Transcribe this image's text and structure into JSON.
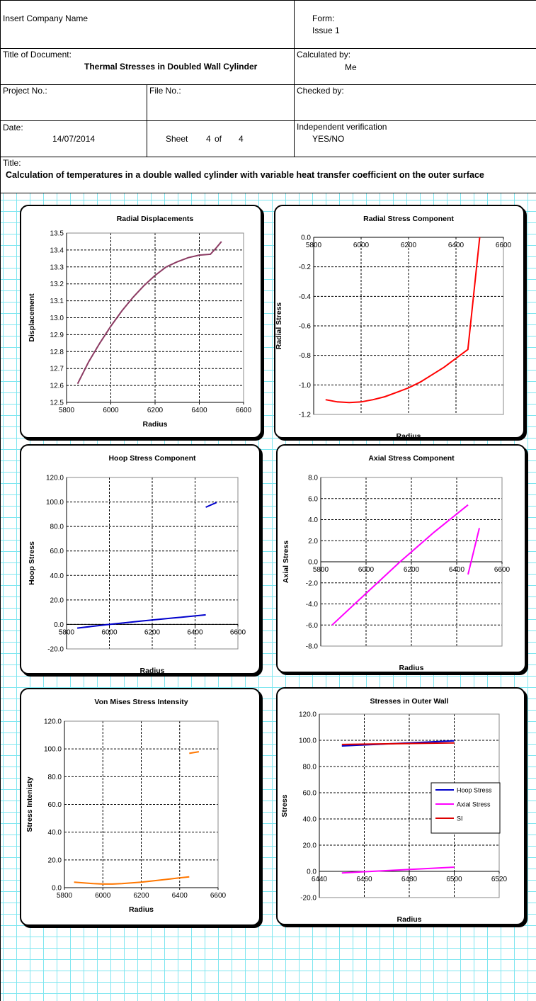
{
  "header": {
    "company": "Insert Company Name",
    "form_label": "Form:",
    "issue": "Issue 1",
    "title_label": "Title of Document:",
    "document_title": "Thermal Stresses in Doubled Wall Cylinder",
    "calculated_by_label": "Calculated by:",
    "calculated_by": "Me",
    "project_no_label": "Project No.:",
    "file_no_label": "File No.:",
    "checked_by_label": "Checked by:",
    "date_label": "Date:",
    "date": "14/07/2014",
    "sheet_label": "Sheet",
    "sheet_number": "4",
    "of_label": "of",
    "sheet_total": "4",
    "verification_label": "Independent verification",
    "verification_value": "YES/NO",
    "title2_label": "Title:",
    "calculation_title": "Calculation of temperatures in a double walled cylinder with variable heat transfer coefficient on the outer surface"
  },
  "chart_data": [
    {
      "type": "line",
      "title": "Radial Displacements",
      "xlabel": "Radius",
      "ylabel": "Displacement",
      "xlim": [
        5800,
        6600
      ],
      "ylim": [
        12.5,
        13.5
      ],
      "xticks": [
        "5800",
        "6000",
        "6200",
        "6400",
        "6600"
      ],
      "yticks": [
        "13.5",
        "13.4",
        "13.3",
        "13.2",
        "13.1",
        "13.0",
        "12.9",
        "12.8",
        "12.7",
        "12.6",
        "12.5"
      ],
      "series": [
        {
          "color": "#8B3A62",
          "x": [
            5850,
            5900,
            5950,
            6000,
            6050,
            6100,
            6150,
            6200,
            6250,
            6300,
            6350,
            6400,
            6450,
            6475,
            6500
          ],
          "y": [
            12.61,
            12.74,
            12.85,
            12.95,
            13.04,
            13.12,
            13.19,
            13.25,
            13.3,
            13.33,
            13.355,
            13.37,
            13.375,
            13.41,
            13.45
          ]
        }
      ]
    },
    {
      "type": "line",
      "title": "Radial  Stress Component",
      "xlabel": "Radius",
      "ylabel": "Radial Stress",
      "xlim": [
        5800,
        6600
      ],
      "ylim": [
        -1.2,
        0.0
      ],
      "xticks": [
        "5800",
        "6000",
        "6200",
        "6400",
        "6600"
      ],
      "yticks": [
        "0.0",
        "-0.2",
        "-0.4",
        "-0.6",
        "-0.8",
        "-1.0",
        "-1.2"
      ],
      "series": [
        {
          "color": "#ff0000",
          "x": [
            5850,
            5900,
            5950,
            6000,
            6050,
            6100,
            6150,
            6200,
            6250,
            6300,
            6350,
            6400,
            6450,
            6500
          ],
          "y": [
            -1.1,
            -1.115,
            -1.12,
            -1.115,
            -1.1,
            -1.08,
            -1.05,
            -1.02,
            -0.98,
            -0.93,
            -0.88,
            -0.82,
            -0.76,
            0.0
          ]
        }
      ]
    },
    {
      "type": "line",
      "title": "Hoop Stress Component",
      "xlabel": "Radius",
      "ylabel": "Hoop Stress",
      "xlim": [
        5800,
        6600
      ],
      "ylim": [
        -20,
        120
      ],
      "xticks": [
        "5800",
        "6000",
        "6200",
        "6400",
        "6600"
      ],
      "yticks": [
        "120.0",
        "100.0",
        "80.0",
        "60.0",
        "40.0",
        "20.0",
        "0.0",
        "-20.0"
      ],
      "series": [
        {
          "color": "#0000cc",
          "x": [
            5850,
            6000,
            6150,
            6300,
            6450
          ],
          "y": [
            -3.0,
            0.0,
            2.8,
            5.3,
            7.8
          ]
        },
        {
          "color": "#0000cc",
          "x": [
            6450,
            6500
          ],
          "y": [
            95.7,
            99.6
          ]
        }
      ]
    },
    {
      "type": "line",
      "title": "Axial Stress Component",
      "xlabel": "Radius",
      "ylabel": "Axial Stress",
      "xlim": [
        5800,
        6600
      ],
      "ylim": [
        -8,
        8
      ],
      "xticks": [
        "5800",
        "6000",
        "6200",
        "6400",
        "6600"
      ],
      "yticks": [
        "8.0",
        "6.0",
        "4.0",
        "2.0",
        "0.0",
        "-2.0",
        "-4.0",
        "-6.0",
        "-8.0"
      ],
      "series": [
        {
          "color": "#ff00ff",
          "x": [
            5850,
            6000,
            6150,
            6300,
            6450
          ],
          "y": [
            -6.0,
            -3.0,
            0.0,
            2.8,
            5.4
          ]
        },
        {
          "color": "#ff00ff",
          "x": [
            6450,
            6500
          ],
          "y": [
            -1.2,
            3.2
          ]
        }
      ]
    },
    {
      "type": "line",
      "title": "Von Mises Stress Intensity",
      "xlabel": "Radius",
      "ylabel": "Stress Intenisty",
      "xlim": [
        5800,
        6600
      ],
      "ylim": [
        0,
        120
      ],
      "xticks": [
        "5800",
        "6000",
        "6200",
        "6400",
        "6600"
      ],
      "yticks": [
        "120.0",
        "100.0",
        "80.0",
        "60.0",
        "40.0",
        "20.0",
        "0.0"
      ],
      "series": [
        {
          "color": "#ff7700",
          "x": [
            5850,
            5900,
            5950,
            6000,
            6050,
            6100,
            6150,
            6200,
            6250,
            6300,
            6350,
            6400,
            6450
          ],
          "y": [
            4.0,
            3.4,
            2.9,
            2.6,
            2.6,
            2.9,
            3.4,
            4.0,
            4.7,
            5.5,
            6.3,
            7.1,
            7.8
          ]
        },
        {
          "color": "#ff7700",
          "x": [
            6450,
            6500
          ],
          "y": [
            96.8,
            98.0
          ]
        }
      ]
    },
    {
      "type": "line",
      "title": "Stresses in Outer Wall",
      "xlabel": "Radius",
      "ylabel": "Stress",
      "xlim": [
        6440,
        6520
      ],
      "ylim": [
        -20,
        120
      ],
      "xticks": [
        "6440",
        "6460",
        "6480",
        "6500",
        "6520"
      ],
      "yticks": [
        "120.0",
        "100.0",
        "80.0",
        "60.0",
        "40.0",
        "20.0",
        "0.0",
        "-20.0"
      ],
      "legend": "right",
      "series": [
        {
          "name": "Hoop Stress",
          "color": "#0000cc",
          "x": [
            6450,
            6500
          ],
          "y": [
            95.7,
            99.6
          ]
        },
        {
          "name": "Axial Stress",
          "color": "#ff00ff",
          "x": [
            6450,
            6500
          ],
          "y": [
            -1.2,
            3.2
          ]
        },
        {
          "name": "SI",
          "color": "#dd0000",
          "x": [
            6450,
            6500
          ],
          "y": [
            96.8,
            98.0
          ]
        }
      ]
    }
  ]
}
